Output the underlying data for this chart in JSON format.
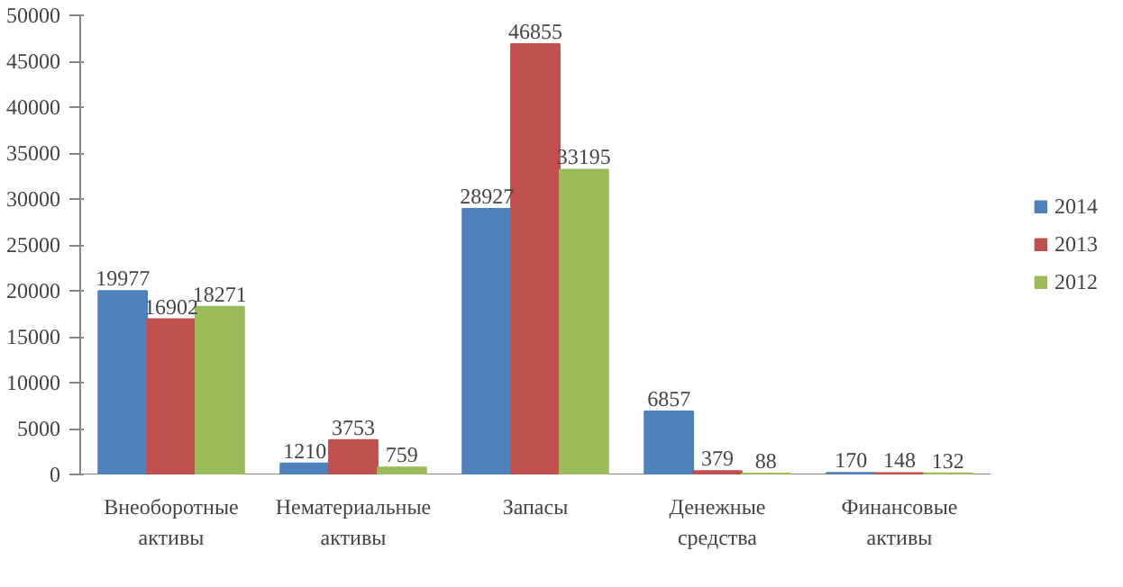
{
  "chart_data": {
    "type": "bar",
    "categories": [
      "Внеоборотные активы",
      "Нематериальные активы",
      "Запасы",
      "Денежные средства",
      "Финансовые активы"
    ],
    "series": [
      {
        "name": "2014",
        "color": "#4f81bd",
        "values": [
          19977,
          1210,
          28927,
          6857,
          170
        ]
      },
      {
        "name": "2013",
        "color": "#c0504d",
        "values": [
          16902,
          3753,
          46855,
          379,
          148
        ]
      },
      {
        "name": "2012",
        "color": "#9bbb59",
        "values": [
          18271,
          759,
          33195,
          88,
          132
        ]
      }
    ],
    "ylim": [
      0,
      50000
    ],
    "yticks": [
      0,
      5000,
      10000,
      15000,
      20000,
      25000,
      30000,
      35000,
      40000,
      45000,
      50000
    ],
    "data_labels": true,
    "grid": false,
    "legend": "right"
  }
}
